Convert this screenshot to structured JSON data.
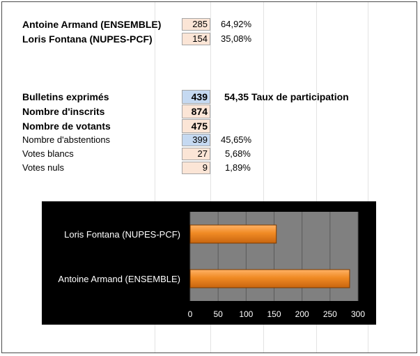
{
  "candidates": [
    {
      "name": "Antoine Armand (ENSEMBLE)",
      "votes": "285",
      "pct": "64,92%"
    },
    {
      "name": "Loris Fontana (NUPES-PCF)",
      "votes": "154",
      "pct": "35,08%"
    }
  ],
  "stats": {
    "exprimes": {
      "label": "Bulletins exprimés",
      "value": "439"
    },
    "participation": {
      "value": "54,35",
      "label": "Taux de participation"
    },
    "inscrits": {
      "label": "Nombre d'inscrits",
      "value": "874"
    },
    "votants": {
      "label": "Nombre de votants",
      "value": "475"
    },
    "abstentions": {
      "label": "Nombre d'abstentions",
      "value": "399",
      "pct": "45,65%"
    },
    "blancs": {
      "label": "Votes blancs",
      "value": "27",
      "pct": "5,68%"
    },
    "nuls": {
      "label": "Votes nuls",
      "value": "9",
      "pct": "1,89%"
    }
  },
  "colors": {
    "bar": "#f08a24",
    "chart_bg": "#000000",
    "plot_bg": "#808080"
  },
  "chart_data": {
    "type": "bar",
    "orientation": "horizontal",
    "categories": [
      "Loris Fontana (NUPES-PCF)",
      "Antoine Armand (ENSEMBLE)"
    ],
    "values": [
      154,
      285
    ],
    "xlim": [
      0,
      300
    ],
    "xticks": [
      "0",
      "50",
      "100",
      "150",
      "200",
      "250",
      "300"
    ],
    "grid": true
  }
}
